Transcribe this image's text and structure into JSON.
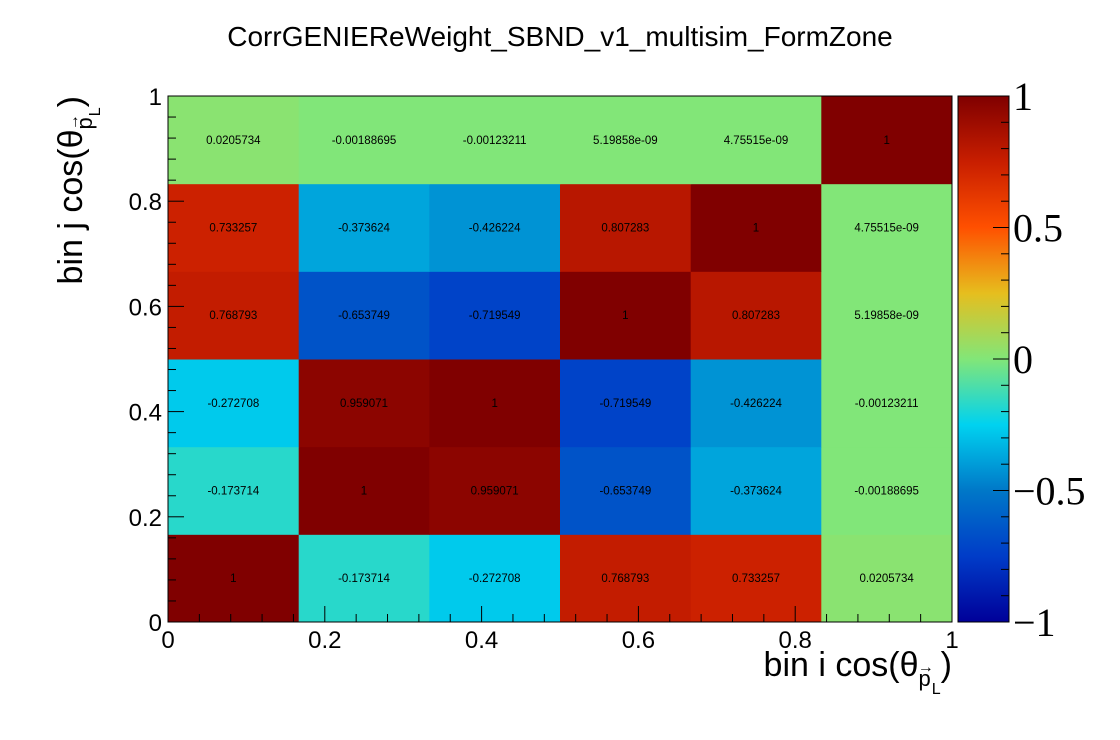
{
  "chart_data": {
    "type": "heatmap",
    "title": "CorrGENIEReWeight_SBND_v1_multisim_FormZone",
    "xlabel": {
      "prefix": "bin i cos(θ",
      "sub": "p",
      "sup_arrow": "→",
      "subsub": "L",
      "suffix": ")"
    },
    "ylabel": {
      "prefix": "bin j cos(θ",
      "sub": "p",
      "sup_arrow": "→",
      "subsub": "L",
      "suffix": ")"
    },
    "xlim": [
      0,
      1
    ],
    "ylim": [
      0,
      1
    ],
    "x_tick_labels": [
      "0",
      "0.2",
      "0.4",
      "0.6",
      "0.8",
      "1"
    ],
    "y_tick_labels": [
      "0",
      "0.2",
      "0.4",
      "0.6",
      "0.8",
      "1"
    ],
    "zlim": [
      -1,
      1
    ],
    "z_tick_labels": [
      "−1",
      "−0.5",
      "0",
      "0.5",
      "1"
    ],
    "x_bin_edges": [
      0,
      0.1667,
      0.3333,
      0.5,
      0.6667,
      0.8333,
      1
    ],
    "y_bin_edges": [
      0,
      0.1667,
      0.3333,
      0.5,
      0.6667,
      0.8333,
      1
    ],
    "values": [
      [
        1,
        -0.173714,
        -0.272708,
        0.768793,
        0.733257,
        0.0205734
      ],
      [
        -0.173714,
        1,
        0.959071,
        -0.653749,
        -0.373624,
        -0.00188695
      ],
      [
        -0.272708,
        0.959071,
        1,
        -0.719549,
        -0.426224,
        -0.00123211
      ],
      [
        0.768793,
        -0.653749,
        -0.719549,
        1,
        0.807283,
        5.19858e-09
      ],
      [
        0.733257,
        -0.373624,
        -0.426224,
        0.807283,
        1,
        4.75515e-09
      ],
      [
        0.0205734,
        -0.00188695,
        -0.00123211,
        5.19858e-09,
        4.75515e-09,
        1
      ]
    ],
    "value_labels": [
      [
        "1",
        "-0.173714",
        "-0.272708",
        "0.768793",
        "0.733257",
        "0.0205734"
      ],
      [
        "-0.173714",
        "1",
        "0.959071",
        "-0.653749",
        "-0.373624",
        "-0.00188695"
      ],
      [
        "-0.272708",
        "0.959071",
        "1",
        "-0.719549",
        "-0.426224",
        "-0.00123211"
      ],
      [
        "0.768793",
        "-0.653749",
        "-0.719549",
        "1",
        "0.807283",
        "5.19858e-09"
      ],
      [
        "0.733257",
        "-0.373624",
        "-0.426224",
        "0.807283",
        "1",
        "4.75515e-09"
      ],
      [
        "0.0205734",
        "-0.00188695",
        "-0.00123211",
        "5.19858e-09",
        "4.75515e-09",
        "1"
      ]
    ],
    "colormap": "rainbow",
    "colorbar_position": "right",
    "grid": false
  }
}
